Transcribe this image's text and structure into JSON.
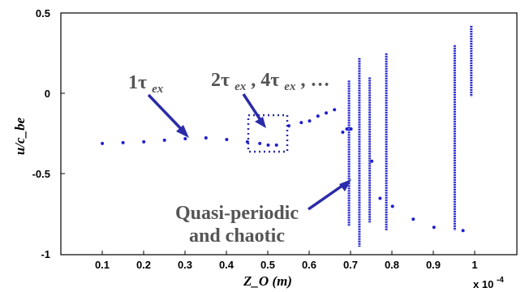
{
  "chart_data": {
    "type": "scatter",
    "xlabel": "Z_O (m)",
    "ylabel": "u/c_be",
    "x_multiplier": "x 10",
    "x_multiplier_exp": "-4",
    "xlim": [
      0,
      1.1
    ],
    "ylim": [
      -1,
      0.5
    ],
    "xticks": [
      "0.1",
      "0.2",
      "0.3",
      "0.4",
      "0.5",
      "0.6",
      "0.7",
      "0.8",
      "0.9",
      "1"
    ],
    "yticks": [
      "0.5",
      "0",
      "-0.5",
      "-1"
    ],
    "marker_color": "#1f1fcf",
    "annotation_color": "#2b2baa",
    "annotations": {
      "one_tau": "1τ",
      "one_tau_sub": "ex",
      "multi_tau_a": "2τ",
      "multi_tau_a_sub": "ex",
      "multi_tau_b": ", 4τ",
      "multi_tau_b_sub": "ex",
      "multi_tau_c": ", …",
      "quasi_line1": "Quasi-periodic",
      "quasi_line2": "and chaotic"
    },
    "series": [
      {
        "values": [
          [
            0.1,
            -0.31
          ],
          [
            0.15,
            -0.305
          ],
          [
            0.2,
            -0.3
          ],
          [
            0.25,
            -0.29
          ],
          [
            0.3,
            -0.28
          ],
          [
            0.35,
            -0.275
          ],
          [
            0.4,
            -0.285
          ],
          [
            0.45,
            -0.3
          ],
          [
            0.48,
            -0.31
          ],
          [
            0.5,
            -0.32
          ],
          [
            0.52,
            -0.32
          ],
          [
            0.55,
            -0.2
          ],
          [
            0.58,
            -0.18
          ],
          [
            0.6,
            -0.17
          ],
          [
            0.62,
            -0.14
          ],
          [
            0.64,
            -0.12
          ],
          [
            0.66,
            -0.1
          ],
          [
            0.68,
            -0.24
          ],
          [
            0.69,
            -0.22
          ],
          [
            0.7,
            -0.22
          ],
          [
            0.75,
            -0.42
          ],
          [
            0.77,
            -0.65
          ],
          [
            0.8,
            -0.7
          ],
          [
            0.85,
            -0.78
          ],
          [
            0.9,
            -0.83
          ],
          [
            0.97,
            -0.85
          ]
        ]
      }
    ],
    "bands": [
      {
        "x": 0.695,
        "ymin": -0.82,
        "ymax": 0.08
      },
      {
        "x": 0.72,
        "ymin": -0.95,
        "ymax": 0.22
      },
      {
        "x": 0.745,
        "ymin": -0.8,
        "ymax": 0.1
      },
      {
        "x": 0.785,
        "ymin": -0.85,
        "ymax": 0.25
      },
      {
        "x": 0.95,
        "ymin": -0.85,
        "ymax": 0.3
      },
      {
        "x": 0.99,
        "ymin": -0.02,
        "ymax": 0.42
      }
    ]
  }
}
